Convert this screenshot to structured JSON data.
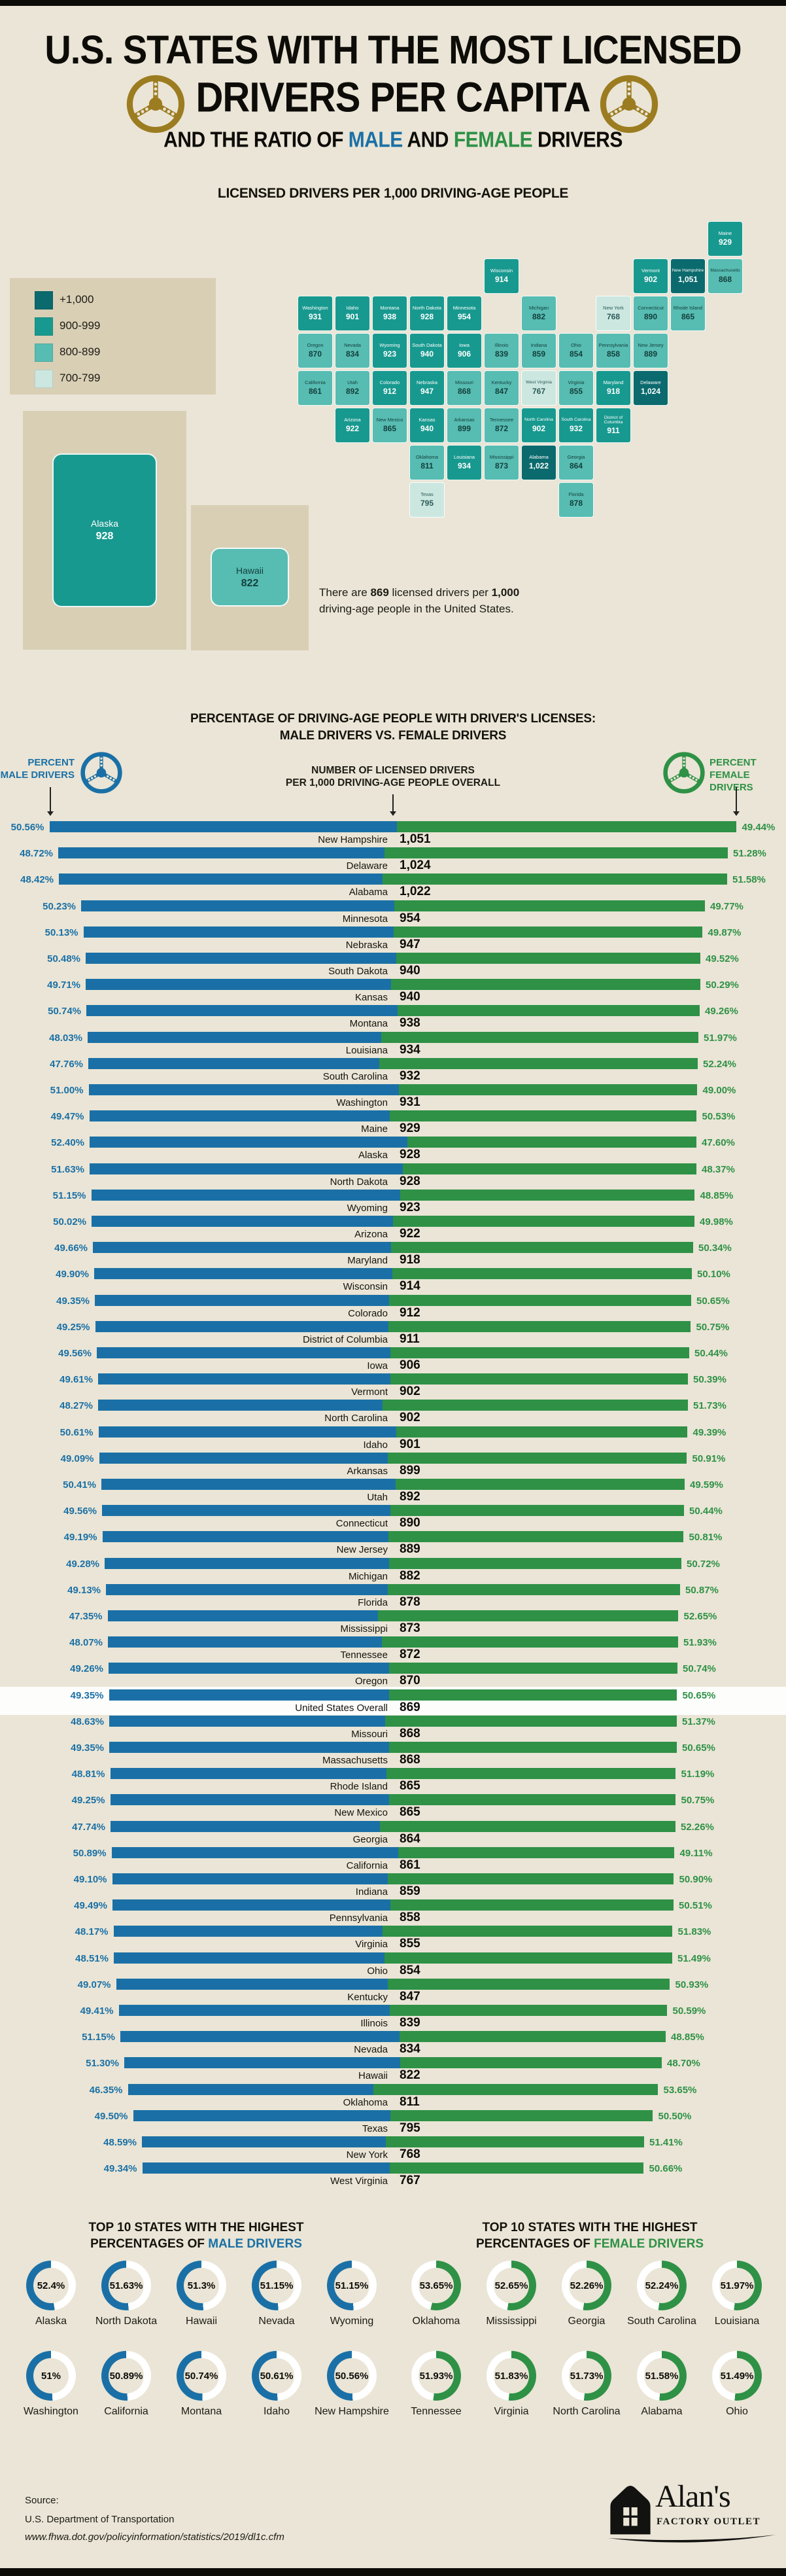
{
  "page": {
    "colors": {
      "background": "#eae5d6",
      "panel_tan": "#d9cfb5",
      "male_blue": "#1a70a6",
      "female_green": "#2e9146",
      "gold_wheel": "#9c7c20",
      "black": "#0d0c08",
      "highlight_band": "#fdfdfc"
    }
  },
  "header": {
    "title_line1": "U.S. STATES WITH THE MOST LICENSED",
    "title_line2": "DRIVERS PER CAPITA",
    "subtitle_prefix": "AND THE RATIO OF ",
    "subtitle_male": "MALE",
    "subtitle_and": " AND ",
    "subtitle_female": "FEMALE",
    "subtitle_suffix": " DRIVERS"
  },
  "map": {
    "title": "LICENSED DRIVERS PER 1,000 DRIVING-AGE PEOPLE",
    "legend": {
      "items": [
        {
          "label": "+1,000",
          "color": "#0b6a6d"
        },
        {
          "label": "900-999",
          "color": "#18998f"
        },
        {
          "label": "800-899",
          "color": "#57bcb2"
        },
        {
          "label": "700-799",
          "color": "#cbe7e0"
        }
      ]
    },
    "bucket_colors": {
      "+1,000": "#0b6a6d",
      "900-999": "#18998f",
      "800-899": "#57bcb2",
      "700-799": "#cbe7e0"
    },
    "bucket_text_colors": {
      "+1,000": "#ffffff",
      "900-999": "#ffffff",
      "800-899": "#123f3b",
      "700-799": "#2c5a55"
    },
    "note": {
      "pre": "There are ",
      "bold1": "869",
      "mid": " licensed drivers per ",
      "bold2": "1,000",
      "post": " driving-age people in the United States."
    },
    "states": [
      {
        "name": "Maine",
        "display": "929",
        "bucket": "900-999",
        "col": 11,
        "row": 0
      },
      {
        "name": "Wisconsin",
        "display": "914",
        "bucket": "900-999",
        "col": 5,
        "row": 1
      },
      {
        "name": "Vermont",
        "display": "902",
        "bucket": "900-999",
        "col": 9,
        "row": 1
      },
      {
        "name": "New Hampshire",
        "display": "1,051",
        "bucket": "+1,000",
        "col": 10,
        "row": 1
      },
      {
        "name": "Massachusetts",
        "display": "868",
        "bucket": "800-899",
        "col": 11,
        "row": 1
      },
      {
        "name": "Washington",
        "display": "931",
        "bucket": "900-999",
        "col": 0,
        "row": 2
      },
      {
        "name": "Idaho",
        "display": "901",
        "bucket": "900-999",
        "col": 1,
        "row": 2
      },
      {
        "name": "Montana",
        "display": "938",
        "bucket": "900-999",
        "col": 2,
        "row": 2
      },
      {
        "name": "North Dakota",
        "display": "928",
        "bucket": "900-999",
        "col": 3,
        "row": 2
      },
      {
        "name": "Minnesota",
        "display": "954",
        "bucket": "900-999",
        "col": 4,
        "row": 2
      },
      {
        "name": "Michigan",
        "display": "882",
        "bucket": "800-899",
        "col": 6,
        "row": 2
      },
      {
        "name": "New York",
        "display": "768",
        "bucket": "700-799",
        "col": 8,
        "row": 2
      },
      {
        "name": "Connecticut",
        "display": "890",
        "bucket": "800-899",
        "col": 9,
        "row": 2
      },
      {
        "name": "Rhode Island",
        "display": "865",
        "bucket": "800-899",
        "col": 10,
        "row": 2
      },
      {
        "name": "Oregon",
        "display": "870",
        "bucket": "800-899",
        "col": 0,
        "row": 3
      },
      {
        "name": "Nevada",
        "display": "834",
        "bucket": "800-899",
        "col": 1,
        "row": 3
      },
      {
        "name": "Wyoming",
        "display": "923",
        "bucket": "900-999",
        "col": 2,
        "row": 3
      },
      {
        "name": "South Dakota",
        "display": "940",
        "bucket": "900-999",
        "col": 3,
        "row": 3
      },
      {
        "name": "Iowa",
        "display": "906",
        "bucket": "900-999",
        "col": 4,
        "row": 3
      },
      {
        "name": "Illinois",
        "display": "839",
        "bucket": "800-899",
        "col": 5,
        "row": 3
      },
      {
        "name": "Indiana",
        "display": "859",
        "bucket": "800-899",
        "col": 6,
        "row": 3
      },
      {
        "name": "Ohio",
        "display": "854",
        "bucket": "800-899",
        "col": 7,
        "row": 3
      },
      {
        "name": "Pennsylvania",
        "display": "858",
        "bucket": "800-899",
        "col": 8,
        "row": 3
      },
      {
        "name": "New Jersey",
        "display": "889",
        "bucket": "800-899",
        "col": 9,
        "row": 3
      },
      {
        "name": "California",
        "display": "861",
        "bucket": "800-899",
        "col": 0,
        "row": 4
      },
      {
        "name": "Utah",
        "display": "892",
        "bucket": "800-899",
        "col": 1,
        "row": 4
      },
      {
        "name": "Colorado",
        "display": "912",
        "bucket": "900-999",
        "col": 2,
        "row": 4
      },
      {
        "name": "Nebraska",
        "display": "947",
        "bucket": "900-999",
        "col": 3,
        "row": 4
      },
      {
        "name": "Missouri",
        "display": "868",
        "bucket": "800-899",
        "col": 4,
        "row": 4
      },
      {
        "name": "Kentucky",
        "display": "847",
        "bucket": "800-899",
        "col": 5,
        "row": 4
      },
      {
        "name": "West Virginia",
        "display": "767",
        "bucket": "700-799",
        "col": 6,
        "row": 4
      },
      {
        "name": "Virginia",
        "display": "855",
        "bucket": "800-899",
        "col": 7,
        "row": 4
      },
      {
        "name": "Maryland",
        "display": "918",
        "bucket": "900-999",
        "col": 8,
        "row": 4
      },
      {
        "name": "Delaware",
        "display": "1,024",
        "bucket": "+1,000",
        "col": 9,
        "row": 4
      },
      {
        "name": "Arizona",
        "display": "922",
        "bucket": "900-999",
        "col": 1,
        "row": 5
      },
      {
        "name": "New Mexico",
        "display": "865",
        "bucket": "800-899",
        "col": 2,
        "row": 5
      },
      {
        "name": "Kansas",
        "display": "940",
        "bucket": "900-999",
        "col": 3,
        "row": 5
      },
      {
        "name": "Arkansas",
        "display": "899",
        "bucket": "800-899",
        "col": 4,
        "row": 5
      },
      {
        "name": "Tennessee",
        "display": "872",
        "bucket": "800-899",
        "col": 5,
        "row": 5
      },
      {
        "name": "North Carolina",
        "display": "902",
        "bucket": "900-999",
        "col": 6,
        "row": 5
      },
      {
        "name": "South Carolina",
        "display": "932",
        "bucket": "900-999",
        "col": 7,
        "row": 5
      },
      {
        "name": "District of Columbia",
        "display": "911",
        "bucket": "900-999",
        "col": 8,
        "row": 5
      },
      {
        "name": "Oklahoma",
        "display": "811",
        "bucket": "800-899",
        "col": 3,
        "row": 6
      },
      {
        "name": "Louisiana",
        "display": "934",
        "bucket": "900-999",
        "col": 4,
        "row": 6
      },
      {
        "name": "Mississippi",
        "display": "873",
        "bucket": "800-899",
        "col": 5,
        "row": 6
      },
      {
        "name": "Alabama",
        "display": "1,022",
        "bucket": "+1,000",
        "col": 6,
        "row": 6
      },
      {
        "name": "Georgia",
        "display": "864",
        "bucket": "800-899",
        "col": 7,
        "row": 6
      },
      {
        "name": "Texas",
        "display": "795",
        "bucket": "700-799",
        "col": 3,
        "row": 7
      },
      {
        "name": "Florida",
        "display": "878",
        "bucket": "800-899",
        "col": 7,
        "row": 7
      }
    ],
    "insets": [
      {
        "name": "Alaska",
        "display": "928",
        "bucket": "900-999"
      },
      {
        "name": "Hawaii",
        "display": "822",
        "bucket": "800-899"
      }
    ]
  },
  "bar_chart": {
    "title_line1": "PERCENTAGE OF DRIVING-AGE PEOPLE WITH DRIVER'S LICENSES:",
    "title_line2": "MALE DRIVERS VS. FEMALE DRIVERS",
    "legend": {
      "male_line1": "PERCENT",
      "male_line2": "MALE DRIVERS",
      "female_line1": "PERCENT",
      "female_line2": "FEMALE DRIVERS",
      "center_line1": "NUMBER OF LICENSED DRIVERS",
      "center_line2": "PER 1,000 DRIVING-AGE PEOPLE OVERALL"
    },
    "highlight_state": "United States Overall"
  },
  "top10_male": {
    "title_line1": "TOP 10 STATES WITH THE HIGHEST",
    "title_prefix": "PERCENTAGES OF ",
    "title_colored": "MALE DRIVERS",
    "items": [
      {
        "state": "Alaska",
        "pct": 52.4,
        "pct_display": "52.4%"
      },
      {
        "state": "North Dakota",
        "pct": 51.63,
        "pct_display": "51.63%"
      },
      {
        "state": "Hawaii",
        "pct": 51.3,
        "pct_display": "51.3%"
      },
      {
        "state": "Nevada",
        "pct": 51.15,
        "pct_display": "51.15%"
      },
      {
        "state": "Wyoming",
        "pct": 51.15,
        "pct_display": "51.15%"
      },
      {
        "state": "Washington",
        "pct": 51,
        "pct_display": "51%"
      },
      {
        "state": "California",
        "pct": 50.89,
        "pct_display": "50.89%"
      },
      {
        "state": "Montana",
        "pct": 50.74,
        "pct_display": "50.74%"
      },
      {
        "state": "Idaho",
        "pct": 50.61,
        "pct_display": "50.61%"
      },
      {
        "state": "New Hampshire",
        "pct": 50.56,
        "pct_display": "50.56%"
      }
    ]
  },
  "top10_female": {
    "title_line1": "TOP 10 STATES WITH THE HIGHEST",
    "title_prefix": "PERCENTAGES OF ",
    "title_colored": "FEMALE DRIVERS",
    "items": [
      {
        "state": "Oklahoma",
        "pct": 53.65,
        "pct_display": "53.65%"
      },
      {
        "state": "Mississippi",
        "pct": 52.65,
        "pct_display": "52.65%"
      },
      {
        "state": "Georgia",
        "pct": 52.26,
        "pct_display": "52.26%"
      },
      {
        "state": "South Carolina",
        "pct": 52.24,
        "pct_display": "52.24%"
      },
      {
        "state": "Louisiana",
        "pct": 51.97,
        "pct_display": "51.97%"
      },
      {
        "state": "Tennessee",
        "pct": 51.93,
        "pct_display": "51.93%"
      },
      {
        "state": "Virginia",
        "pct": 51.83,
        "pct_display": "51.83%"
      },
      {
        "state": "North Carolina",
        "pct": 51.73,
        "pct_display": "51.73%"
      },
      {
        "state": "Alabama",
        "pct": 51.58,
        "pct_display": "51.58%"
      },
      {
        "state": "Ohio",
        "pct": 51.49,
        "pct_display": "51.49%"
      }
    ]
  },
  "footer": {
    "source_label": "Source:",
    "source_line": "U.S. Department of Transportation",
    "source_url": "www.fhwa.dot.gov/policyinformation/statistics/2019/dl1c.cfm",
    "logo_name": "Alan's",
    "logo_sub": "FACTORY OUTLET"
  },
  "chart_data": [
    {
      "type": "table",
      "title": "Licensed drivers per 1,000 driving-age people and male vs. female driver share, by state",
      "columns": [
        "State",
        "Licensed drivers per 1,000 driving-age people",
        "Percent male drivers",
        "Percent female drivers"
      ],
      "rows": [
        [
          "New Hampshire",
          1051,
          50.56,
          49.44
        ],
        [
          "Delaware",
          1024,
          48.72,
          51.28
        ],
        [
          "Alabama",
          1022,
          48.42,
          51.58
        ],
        [
          "Minnesota",
          954,
          50.23,
          49.77
        ],
        [
          "Nebraska",
          947,
          50.13,
          49.87
        ],
        [
          "South Dakota",
          940,
          50.48,
          49.52
        ],
        [
          "Kansas",
          940,
          49.71,
          50.29
        ],
        [
          "Montana",
          938,
          50.74,
          49.26
        ],
        [
          "Louisiana",
          934,
          48.03,
          51.97
        ],
        [
          "South Carolina",
          932,
          47.76,
          52.24
        ],
        [
          "Washington",
          931,
          51.0,
          49.0
        ],
        [
          "Maine",
          929,
          49.47,
          50.53
        ],
        [
          "Alaska",
          928,
          52.4,
          47.6
        ],
        [
          "North Dakota",
          928,
          51.63,
          48.37
        ],
        [
          "Wyoming",
          923,
          51.15,
          48.85
        ],
        [
          "Arizona",
          922,
          50.02,
          49.98
        ],
        [
          "Maryland",
          918,
          49.66,
          50.34
        ],
        [
          "Wisconsin",
          914,
          49.9,
          50.1
        ],
        [
          "Colorado",
          912,
          49.35,
          50.65
        ],
        [
          "District of Columbia",
          911,
          49.25,
          50.75
        ],
        [
          "Iowa",
          906,
          49.56,
          50.44
        ],
        [
          "Vermont",
          902,
          49.61,
          50.39
        ],
        [
          "North Carolina",
          902,
          48.27,
          51.73
        ],
        [
          "Idaho",
          901,
          50.61,
          49.39
        ],
        [
          "Arkansas",
          899,
          49.09,
          50.91
        ],
        [
          "Utah",
          892,
          50.41,
          49.59
        ],
        [
          "Connecticut",
          890,
          49.56,
          50.44
        ],
        [
          "New Jersey",
          889,
          49.19,
          50.81
        ],
        [
          "Michigan",
          882,
          49.28,
          50.72
        ],
        [
          "Florida",
          878,
          49.13,
          50.87
        ],
        [
          "Mississippi",
          873,
          47.35,
          52.65
        ],
        [
          "Tennessee",
          872,
          48.07,
          51.93
        ],
        [
          "Oregon",
          870,
          49.26,
          50.74
        ],
        [
          "United States Overall",
          869,
          49.35,
          50.65
        ],
        [
          "Missouri",
          868,
          48.63,
          51.37
        ],
        [
          "Massachusetts",
          868,
          49.35,
          50.65
        ],
        [
          "Rhode Island",
          865,
          48.81,
          51.19
        ],
        [
          "New Mexico",
          865,
          49.25,
          50.75
        ],
        [
          "Georgia",
          864,
          47.74,
          52.26
        ],
        [
          "California",
          861,
          50.89,
          49.11
        ],
        [
          "Indiana",
          859,
          49.1,
          50.9
        ],
        [
          "Pennsylvania",
          858,
          49.49,
          50.51
        ],
        [
          "Virginia",
          855,
          48.17,
          51.83
        ],
        [
          "Ohio",
          854,
          48.51,
          51.49
        ],
        [
          "Kentucky",
          847,
          49.07,
          50.93
        ],
        [
          "Illinois",
          839,
          49.41,
          50.59
        ],
        [
          "Nevada",
          834,
          51.15,
          48.85
        ],
        [
          "Hawaii",
          822,
          51.3,
          48.7
        ],
        [
          "Oklahoma",
          811,
          46.35,
          53.65
        ],
        [
          "Texas",
          795,
          49.5,
          50.5
        ],
        [
          "New York",
          768,
          48.59,
          51.41
        ],
        [
          "West Virginia",
          767,
          49.34,
          50.66
        ]
      ]
    },
    {
      "type": "bar",
      "title": "TOP 10 STATES WITH THE HIGHEST PERCENTAGES OF MALE DRIVERS",
      "categories": [
        "Alaska",
        "North Dakota",
        "Hawaii",
        "Nevada",
        "Wyoming",
        "Washington",
        "California",
        "Montana",
        "Idaho",
        "New Hampshire"
      ],
      "values": [
        52.4,
        51.63,
        51.3,
        51.15,
        51.15,
        51.0,
        50.89,
        50.74,
        50.61,
        50.56
      ],
      "ylabel": "Percent male drivers"
    },
    {
      "type": "bar",
      "title": "TOP 10 STATES WITH THE HIGHEST PERCENTAGES OF FEMALE DRIVERS",
      "categories": [
        "Oklahoma",
        "Mississippi",
        "Georgia",
        "South Carolina",
        "Louisiana",
        "Tennessee",
        "Virginia",
        "North Carolina",
        "Alabama",
        "Ohio"
      ],
      "values": [
        53.65,
        52.65,
        52.26,
        52.24,
        51.97,
        51.93,
        51.83,
        51.73,
        51.58,
        51.49
      ],
      "ylabel": "Percent female drivers"
    }
  ]
}
